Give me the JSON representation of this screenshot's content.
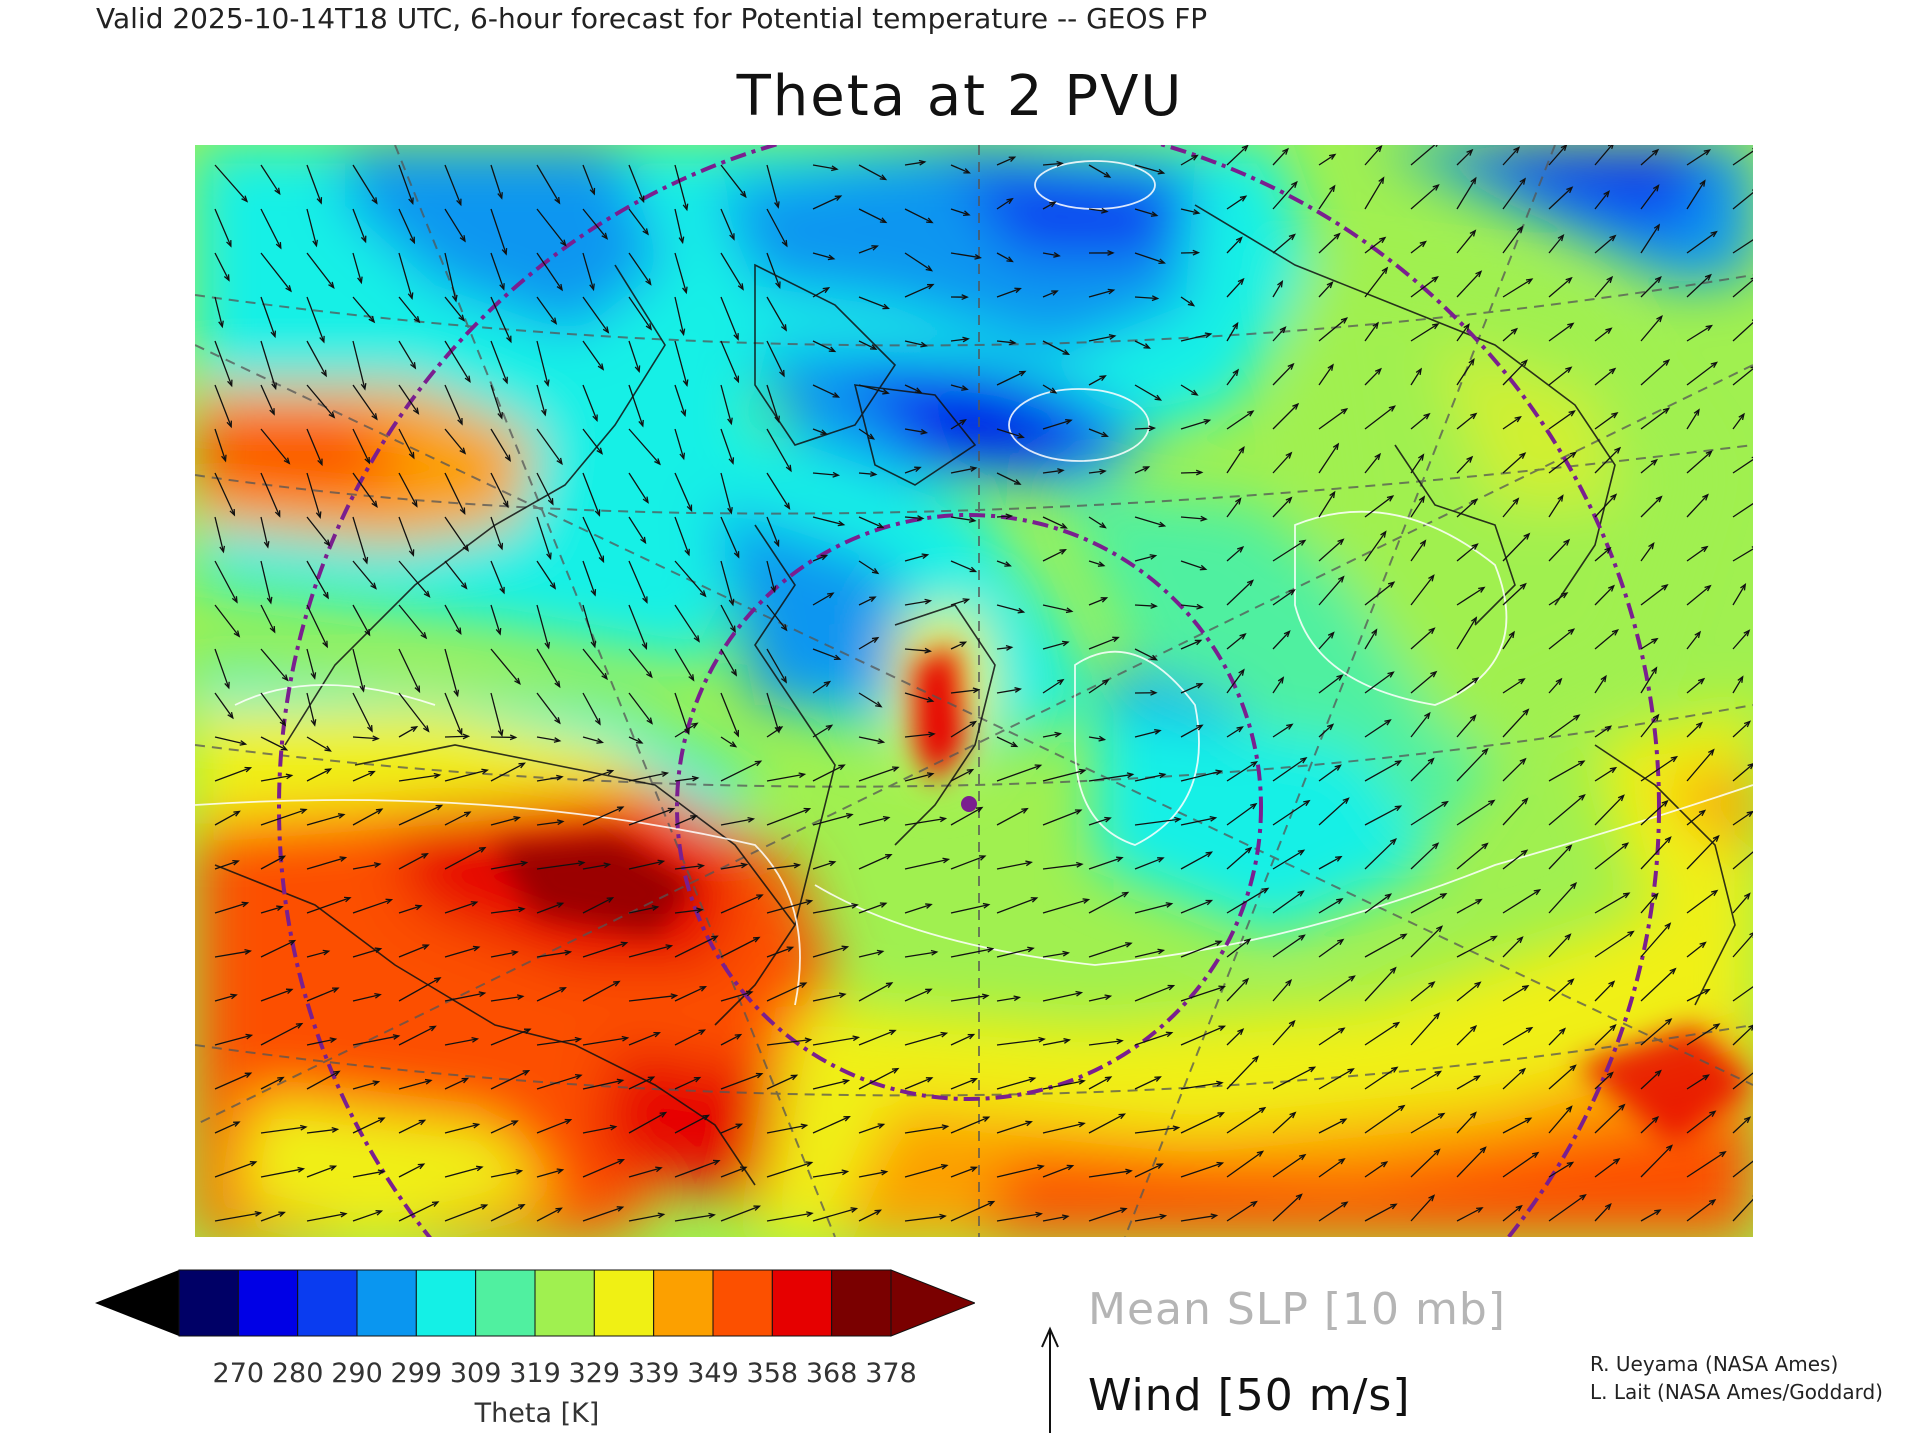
{
  "header": {
    "valid_line": "Valid 2025-10-14T18 UTC, 6-hour forecast for Potential temperature -- GEOS FP"
  },
  "map": {
    "title": "Theta at 2 PVU",
    "field": "Potential temperature on the 2 PVU surface",
    "overlay_contours": "Mean SLP",
    "overlay_vectors": "Wind",
    "marker_color": "#7a1f8f",
    "ring_color": "#7a1f8f"
  },
  "colorbar": {
    "tick_labels": [
      "270",
      "280",
      "290",
      "299",
      "309",
      "319",
      "329",
      "339",
      "349",
      "358",
      "368",
      "378"
    ],
    "colors": [
      "#000066",
      "#0000e6",
      "#0a3cf0",
      "#0a96f0",
      "#14f0e6",
      "#50f0a0",
      "#a0f050",
      "#f0f014",
      "#fca000",
      "#fc5000",
      "#e60000",
      "#7a0000"
    ],
    "under_color": "#000000",
    "over_color": "#7a0000",
    "label": "Theta [K]"
  },
  "legend": {
    "slp_label": "Mean SLP [10 mb]",
    "wind_label": "Wind [50 m/s]"
  },
  "credits": {
    "line1": "R. Ueyama (NASA Ames)",
    "line2": "L. Lait (NASA Ames/Goddard)"
  }
}
